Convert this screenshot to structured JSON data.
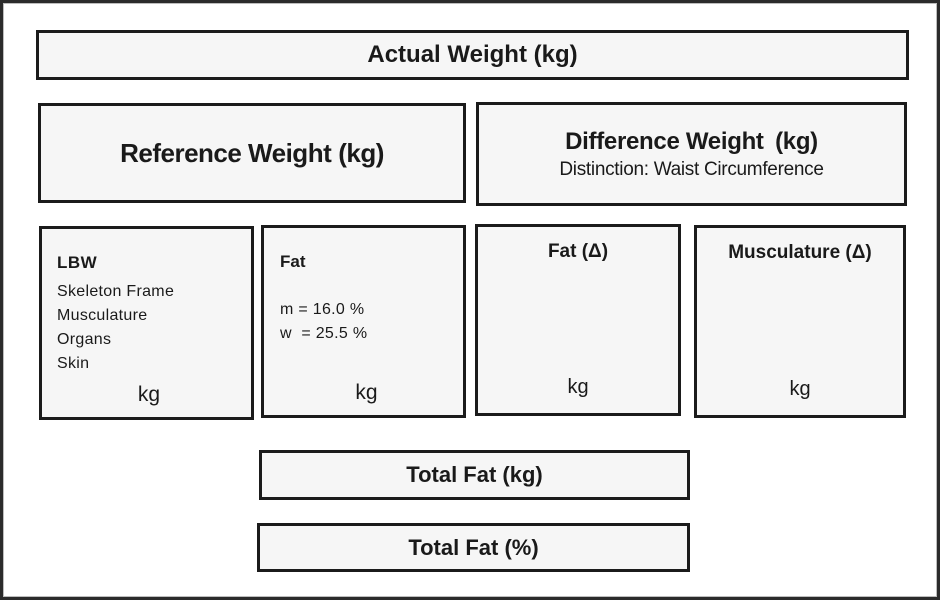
{
  "colors": {
    "box_fill": "#f6f6f6",
    "box_border": "#1b1b1b",
    "outer_border": "#2b2b2b",
    "text": "#1a1a1a"
  },
  "boxes": {
    "actual_weight": {
      "title": "Actual Weight (kg)"
    },
    "reference_weight": {
      "title": "Reference Weight",
      "unit": "(kg)"
    },
    "difference_weight": {
      "title": "Difference Weight",
      "unit": "(kg)",
      "subtitle": "Distinction: Waist Circumference"
    },
    "lbw": {
      "title": "LBW",
      "items": [
        "Skeleton Frame",
        "Musculature",
        "Organs",
        "Skin"
      ],
      "unit_label": "kg"
    },
    "fat": {
      "title": "Fat",
      "lines": [
        "m = 16.0 %",
        "w  = 25.5 %"
      ],
      "unit_label": "kg"
    },
    "fat_delta": {
      "title": "Fat (Δ)",
      "unit_label": "kg"
    },
    "musculature_delta": {
      "title": "Musculature (Δ)",
      "unit_label": "kg"
    },
    "total_fat_kg": {
      "title": "Total Fat (kg)"
    },
    "total_fat_pct": {
      "title": "Total Fat (%)"
    }
  }
}
